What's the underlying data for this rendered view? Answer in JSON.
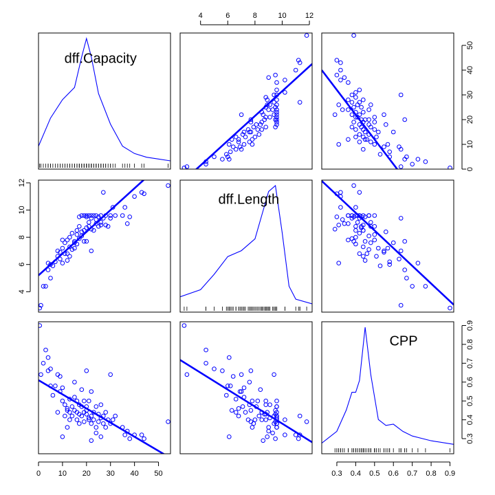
{
  "chart_data": {
    "type": "scatter",
    "variables": [
      "dff.Capacity",
      "dff.Length",
      "CPP"
    ],
    "ranges": {
      "Capacity": [
        0,
        55
      ],
      "Length": [
        2.5,
        12.2
      ],
      "CPP": [
        0.22,
        0.92
      ]
    },
    "axis_ticks": {
      "Capacity": [
        0,
        10,
        20,
        30,
        40,
        50
      ],
      "Length": [
        4,
        6,
        8,
        10,
        12
      ],
      "CPP": [
        0.3,
        0.4,
        0.5,
        0.6,
        0.7,
        0.8,
        0.9
      ]
    },
    "fit_lines": {
      "Length_on_Capacity": {
        "intercept": 5.2,
        "slope": 0.16
      },
      "Capacity_on_Length": {
        "intercept": -18.5,
        "slope": 5.0
      },
      "CPP_on_Capacity": {
        "intercept": 0.61,
        "slope": -0.0075
      },
      "Capacity_on_CPP": {
        "intercept": 62,
        "slope": -100
      },
      "CPP_on_Length": {
        "intercept": 0.83,
        "slope": -0.045
      },
      "Length_on_CPP": {
        "intercept": 15,
        "slope": -13
      }
    },
    "density": {
      "Capacity": {
        "x": [
          0,
          5,
          10,
          15,
          18,
          20,
          22,
          25,
          30,
          35,
          40,
          45,
          50,
          55
        ],
        "y": [
          0.12,
          0.35,
          0.5,
          0.6,
          0.85,
          1.0,
          0.85,
          0.55,
          0.3,
          0.12,
          0.06,
          0.03,
          0.015,
          0.0
        ]
      },
      "Length": {
        "x": [
          2.5,
          4,
          5,
          6,
          7,
          8,
          8.5,
          9,
          9.5,
          10,
          10.5,
          11,
          12.2
        ],
        "y": [
          0.06,
          0.12,
          0.25,
          0.4,
          0.45,
          0.55,
          0.75,
          0.95,
          1.0,
          0.6,
          0.15,
          0.04,
          0.0
        ]
      },
      "CPP": {
        "x": [
          0.22,
          0.3,
          0.35,
          0.38,
          0.4,
          0.42,
          0.45,
          0.48,
          0.52,
          0.56,
          0.6,
          0.65,
          0.7,
          0.8,
          0.92
        ],
        "y": [
          0.02,
          0.12,
          0.3,
          0.45,
          0.45,
          0.55,
          1.0,
          0.6,
          0.22,
          0.17,
          0.18,
          0.12,
          0.08,
          0.04,
          0.01
        ]
      }
    },
    "points": [
      [
        0.5,
        2.8,
        0.9
      ],
      [
        1,
        3.0,
        0.64
      ],
      [
        2,
        4.4,
        0.7
      ],
      [
        3,
        4.4,
        0.77
      ],
      [
        4,
        5.6,
        0.66
      ],
      [
        4,
        6.1,
        0.73
      ],
      [
        5,
        5.0,
        0.67
      ],
      [
        5,
        6.0,
        0.58
      ],
      [
        6,
        5.9,
        0.53
      ],
      [
        7,
        6.2,
        0.58
      ],
      [
        8,
        6.6,
        0.44
      ],
      [
        8,
        7.0,
        0.64
      ],
      [
        9,
        6.4,
        0.63
      ],
      [
        9,
        6.9,
        0.55
      ],
      [
        10,
        7.2,
        0.57
      ],
      [
        10,
        7.8,
        0.5
      ],
      [
        11,
        7.6,
        0.48
      ],
      [
        11,
        6.8,
        0.42
      ],
      [
        12,
        7.8,
        0.36
      ],
      [
        12,
        6.3,
        0.45
      ],
      [
        13,
        7.3,
        0.44
      ],
      [
        13,
        8.0,
        0.4
      ],
      [
        14,
        7.1,
        0.47
      ],
      [
        14,
        8.3,
        0.42
      ],
      [
        15,
        7.7,
        0.45
      ],
      [
        15,
        7.2,
        0.52
      ],
      [
        16,
        8.5,
        0.44
      ],
      [
        16,
        7.5,
        0.4
      ],
      [
        17,
        8.8,
        0.48
      ],
      [
        17,
        7.9,
        0.38
      ],
      [
        17,
        9.5,
        0.43
      ],
      [
        18,
        8.1,
        0.47
      ],
      [
        18,
        9.6,
        0.42
      ],
      [
        19,
        8.5,
        0.44
      ],
      [
        19,
        9.6,
        0.5
      ],
      [
        19,
        7.7,
        0.39
      ],
      [
        20,
        8.7,
        0.43
      ],
      [
        20,
        9.5,
        0.45
      ],
      [
        20,
        9.6,
        0.47
      ],
      [
        21,
        9.1,
        0.41
      ],
      [
        21,
        9.6,
        0.4
      ],
      [
        21,
        8.8,
        0.5
      ],
      [
        22,
        9.4,
        0.42
      ],
      [
        22,
        9.6,
        0.38
      ],
      [
        22,
        7.0,
        0.55
      ],
      [
        23,
        9.6,
        0.44
      ],
      [
        23,
        8.5,
        0.4
      ],
      [
        24,
        9.6,
        0.47
      ],
      [
        24,
        9.0,
        0.36
      ],
      [
        25,
        8.8,
        0.43
      ],
      [
        25,
        9.5,
        0.39
      ],
      [
        26,
        9.6,
        0.41
      ],
      [
        26,
        9.1,
        0.48
      ],
      [
        27,
        11.3,
        0.42
      ],
      [
        27,
        9.4,
        0.38
      ],
      [
        28,
        9.6,
        0.36
      ],
      [
        28,
        8.9,
        0.44
      ],
      [
        29,
        8.8,
        0.4
      ],
      [
        30,
        9.6,
        0.38
      ],
      [
        30,
        9.4,
        0.64
      ],
      [
        31,
        10.2,
        0.4
      ],
      [
        32,
        9.6,
        0.42
      ],
      [
        35,
        9.6,
        0.36
      ],
      [
        36,
        10.2,
        0.32
      ],
      [
        37,
        9.0,
        0.34
      ],
      [
        38,
        9.5,
        0.3
      ],
      [
        40,
        11.0,
        0.32
      ],
      [
        43,
        11.3,
        0.32
      ],
      [
        44,
        11.2,
        0.3
      ],
      [
        54,
        11.8,
        0.39
      ],
      [
        20,
        7.7,
        0.66
      ],
      [
        18,
        8.4,
        0.56
      ],
      [
        15,
        7.6,
        0.6
      ],
      [
        12,
        6.8,
        0.46
      ],
      [
        24,
        9.3,
        0.33
      ],
      [
        26,
        8.9,
        0.31
      ],
      [
        16,
        8.2,
        0.5
      ],
      [
        22,
        8.6,
        0.29
      ],
      [
        13,
        6.6,
        0.51
      ],
      [
        10,
        6.1,
        0.31
      ]
    ]
  }
}
